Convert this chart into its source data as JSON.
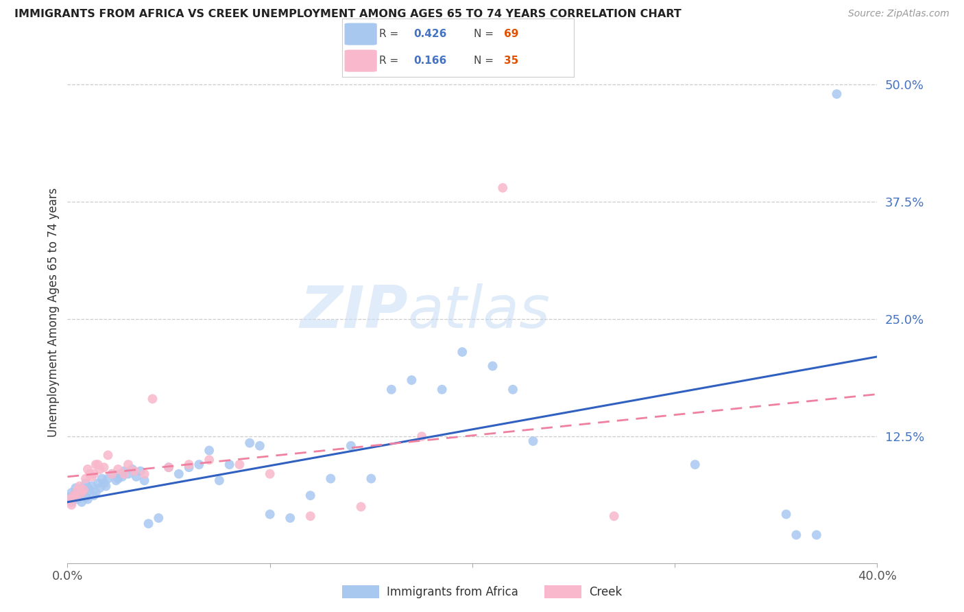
{
  "title": "IMMIGRANTS FROM AFRICA VS CREEK UNEMPLOYMENT AMONG AGES 65 TO 74 YEARS CORRELATION CHART",
  "source": "Source: ZipAtlas.com",
  "ylabel": "Unemployment Among Ages 65 to 74 years",
  "xlim": [
    0.0,
    0.4
  ],
  "ylim": [
    -0.01,
    0.525
  ],
  "yticks": [
    0.0,
    0.125,
    0.25,
    0.375,
    0.5
  ],
  "ytick_labels": [
    "",
    "12.5%",
    "25.0%",
    "37.5%",
    "50.0%"
  ],
  "xticks": [
    0.0,
    0.1,
    0.2,
    0.3,
    0.4
  ],
  "xtick_labels": [
    "0.0%",
    "",
    "",
    "",
    "40.0%"
  ],
  "legend1_r": "0.426",
  "legend1_n": "69",
  "legend2_r": "0.166",
  "legend2_n": "35",
  "series1_color": "#a8c8f0",
  "series2_color": "#f9b8cb",
  "line1_color": "#3060c0",
  "line2_color": "#f080a0",
  "watermark_zip": "ZIP",
  "watermark_atlas": "atlas",
  "series1_x": [
    0.001,
    0.002,
    0.002,
    0.003,
    0.003,
    0.004,
    0.004,
    0.005,
    0.005,
    0.006,
    0.006,
    0.007,
    0.007,
    0.008,
    0.008,
    0.009,
    0.009,
    0.01,
    0.01,
    0.011,
    0.012,
    0.013,
    0.014,
    0.015,
    0.016,
    0.017,
    0.018,
    0.019,
    0.02,
    0.022,
    0.024,
    0.025,
    0.026,
    0.027,
    0.028,
    0.03,
    0.032,
    0.034,
    0.036,
    0.038,
    0.04,
    0.045,
    0.05,
    0.055,
    0.06,
    0.065,
    0.07,
    0.075,
    0.08,
    0.09,
    0.095,
    0.1,
    0.11,
    0.12,
    0.13,
    0.14,
    0.15,
    0.16,
    0.17,
    0.185,
    0.195,
    0.21,
    0.22,
    0.23,
    0.31,
    0.355,
    0.36,
    0.37,
    0.38
  ],
  "series1_y": [
    0.06,
    0.055,
    0.065,
    0.058,
    0.062,
    0.06,
    0.07,
    0.058,
    0.065,
    0.062,
    0.068,
    0.055,
    0.07,
    0.065,
    0.068,
    0.06,
    0.075,
    0.07,
    0.058,
    0.068,
    0.072,
    0.062,
    0.065,
    0.075,
    0.07,
    0.08,
    0.075,
    0.072,
    0.08,
    0.085,
    0.078,
    0.08,
    0.085,
    0.082,
    0.088,
    0.085,
    0.09,
    0.082,
    0.088,
    0.078,
    0.032,
    0.038,
    0.092,
    0.085,
    0.092,
    0.095,
    0.11,
    0.078,
    0.095,
    0.118,
    0.115,
    0.042,
    0.038,
    0.062,
    0.08,
    0.115,
    0.08,
    0.175,
    0.185,
    0.175,
    0.215,
    0.2,
    0.175,
    0.12,
    0.095,
    0.042,
    0.02,
    0.02,
    0.49
  ],
  "series2_x": [
    0.001,
    0.002,
    0.003,
    0.004,
    0.005,
    0.006,
    0.007,
    0.008,
    0.009,
    0.01,
    0.011,
    0.012,
    0.013,
    0.014,
    0.015,
    0.016,
    0.018,
    0.02,
    0.022,
    0.025,
    0.028,
    0.03,
    0.033,
    0.038,
    0.042,
    0.05,
    0.06,
    0.07,
    0.085,
    0.1,
    0.12,
    0.145,
    0.175,
    0.215,
    0.27
  ],
  "series2_y": [
    0.058,
    0.052,
    0.062,
    0.06,
    0.068,
    0.072,
    0.065,
    0.068,
    0.08,
    0.09,
    0.085,
    0.082,
    0.085,
    0.095,
    0.095,
    0.09,
    0.092,
    0.105,
    0.085,
    0.09,
    0.085,
    0.095,
    0.088,
    0.085,
    0.165,
    0.092,
    0.095,
    0.1,
    0.095,
    0.085,
    0.04,
    0.05,
    0.125,
    0.39,
    0.04
  ],
  "line1_x0": 0.0,
  "line1_y0": 0.055,
  "line1_x1": 0.4,
  "line1_y1": 0.21,
  "line2_x0": 0.0,
  "line2_y0": 0.082,
  "line2_x1": 0.4,
  "line2_y1": 0.17
}
